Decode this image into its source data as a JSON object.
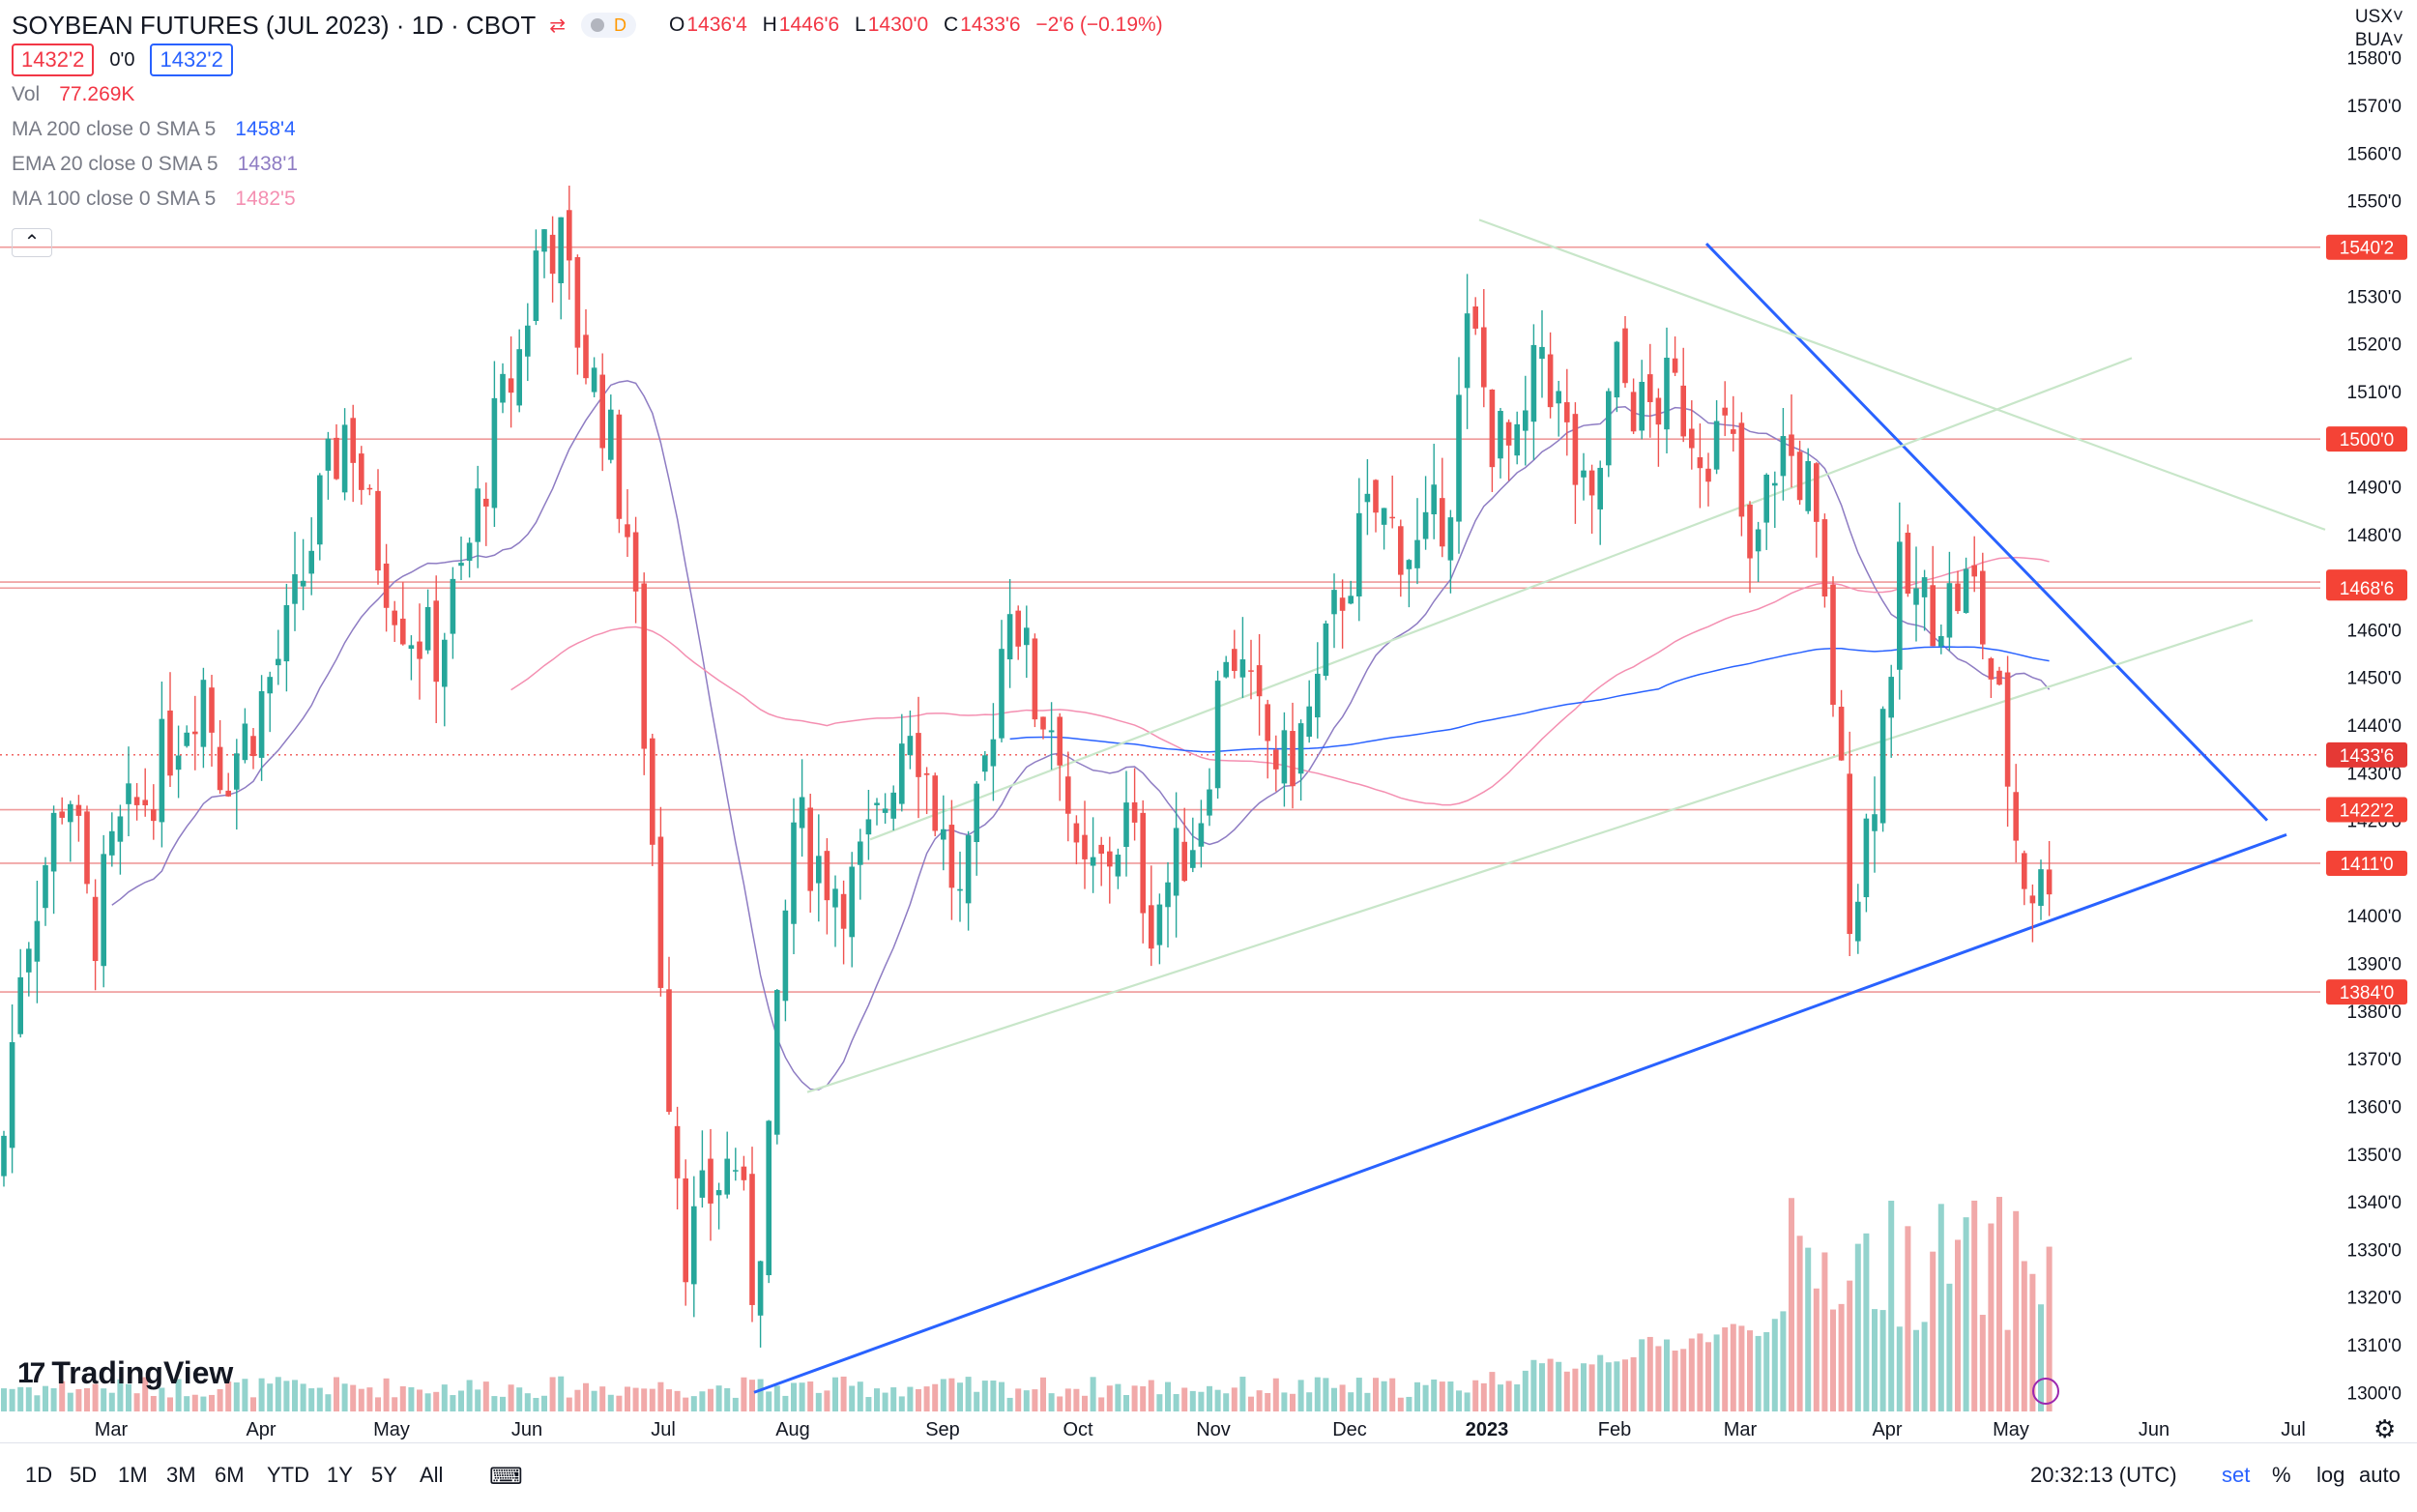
{
  "header": {
    "title": "SOYBEAN FUTURES (JUL 2023) · 1D · CBOT",
    "badge_letter": "D",
    "ohlc": [
      {
        "k": "O",
        "v": "1436'4"
      },
      {
        "k": "H",
        "v": "1446'6"
      },
      {
        "k": "L",
        "v": "1430'0"
      },
      {
        "k": "C",
        "v": "1433'6"
      },
      {
        "k": "",
        "v": "−2'6 (−0.19%)"
      }
    ],
    "bid": "1432'2",
    "spread": "0'0",
    "ask": "1432'2"
  },
  "indicators": [
    {
      "name": "Vol",
      "value": "77.269K",
      "color": "#f23645"
    },
    {
      "name": "MA 200 close 0 SMA 5",
      "value": "1458'4",
      "color": "#2962ff"
    },
    {
      "name": "EMA 20 close 0 SMA 5",
      "value": "1438'1",
      "color": "#8e7cc3"
    },
    {
      "name": "MA 100 close 0 SMA 5",
      "value": "1482'5",
      "color": "#f48fb1"
    }
  ],
  "collapse_symbol": "⌃",
  "currency": "USX",
  "unit": "BUA",
  "logo_text": "TradingView",
  "toolbar": {
    "timeframes": [
      "1D",
      "5D",
      "1M",
      "3M",
      "6M",
      "YTD",
      "1Y",
      "5Y",
      "All"
    ],
    "clock": "20:32:13 (UTC)",
    "options": [
      "set",
      "%",
      "log",
      "auto"
    ]
  },
  "chart_data": {
    "type": "candlestick",
    "ylim": [
      1296,
      1584
    ],
    "y_ticks": [
      1300,
      1310,
      1320,
      1330,
      1340,
      1350,
      1360,
      1370,
      1380,
      1390,
      1400,
      1410,
      1420,
      1430,
      1440,
      1450,
      1460,
      1470,
      1480,
      1490,
      1500,
      1510,
      1520,
      1530,
      1540,
      1550,
      1560,
      1570,
      1580
    ],
    "x_labels": [
      "Mar",
      "Apr",
      "May",
      "Jun",
      "Jul",
      "Aug",
      "Sep",
      "Oct",
      "Nov",
      "Dec",
      "2023",
      "Feb",
      "Mar",
      "Apr",
      "May",
      "Jun",
      "Jul"
    ],
    "last_price_label": "1433'6",
    "levels": [
      {
        "price": 1540.25,
        "label": "1540'2"
      },
      {
        "price": 1500.0,
        "label": "1500'0"
      },
      {
        "price": 1470.0,
        "label": "1470'0"
      },
      {
        "price": 1468.75,
        "label": "1468'6"
      },
      {
        "price": 1422.25,
        "label": "1422'2"
      },
      {
        "price": 1411.0,
        "label": "1411'0"
      },
      {
        "price": 1384.0,
        "label": "1384'0"
      }
    ],
    "last_price": 1433.75,
    "grid": false,
    "colors": {
      "up": "#26a69a",
      "down": "#ef5350",
      "trend": "#2962ff",
      "light_trend": "#c8e6c9"
    }
  }
}
